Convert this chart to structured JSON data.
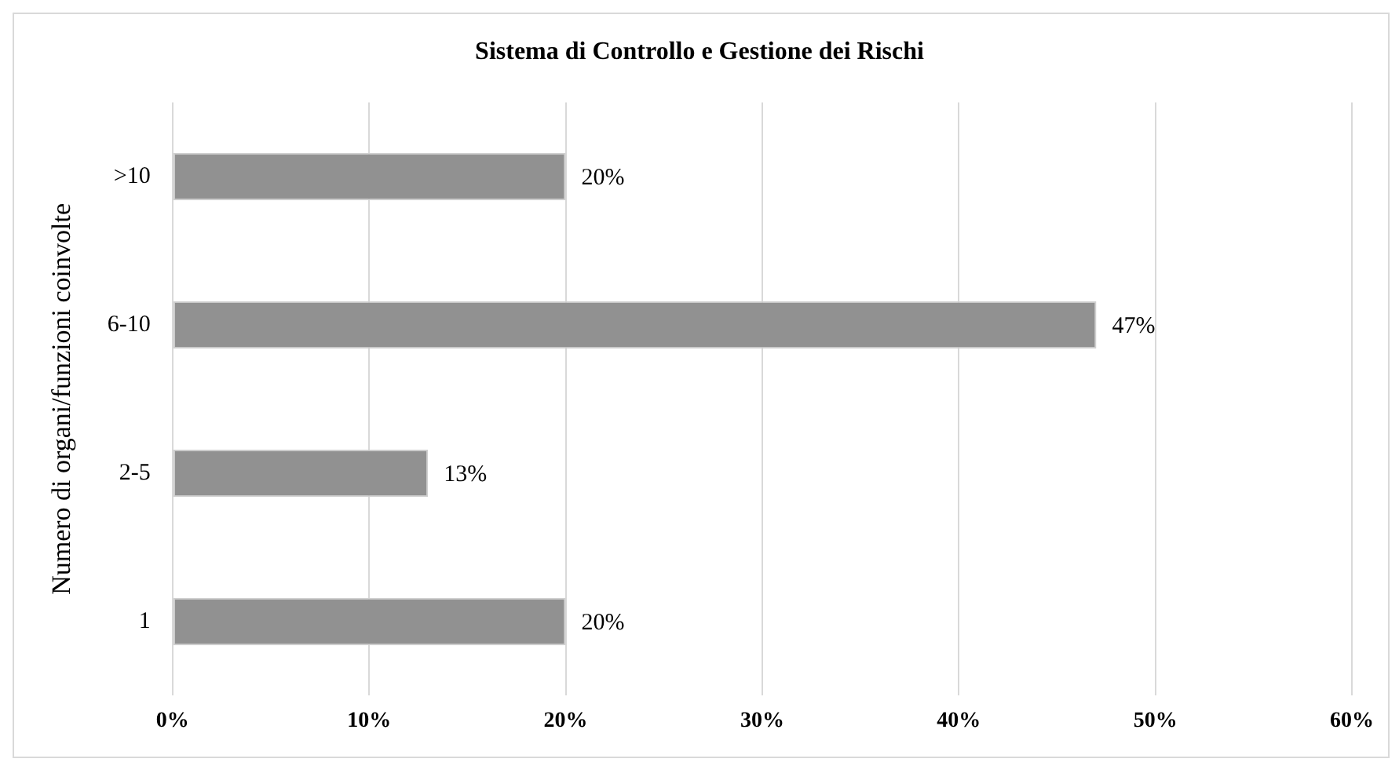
{
  "chart_data": {
    "type": "bar",
    "orientation": "horizontal",
    "title": "Sistema di Controllo e Gestione dei Rischi",
    "ylabel": "Numero di organi/funzioni coinvolte",
    "categories": [
      ">10",
      "6-10",
      "2-5",
      "1"
    ],
    "values": [
      20,
      47,
      13,
      20
    ],
    "value_labels": [
      "20%",
      "47%",
      "13%",
      "20%"
    ],
    "color": "#919191",
    "xlim": [
      0,
      60
    ],
    "xticks": [
      {
        "value": 0,
        "label": "0%"
      },
      {
        "value": 10,
        "label": "10%"
      },
      {
        "value": 20,
        "label": "20%"
      },
      {
        "value": 30,
        "label": "30%"
      },
      {
        "value": 40,
        "label": "40%"
      },
      {
        "value": 50,
        "label": "50%"
      },
      {
        "value": 60,
        "label": "60%"
      }
    ],
    "grid": "x"
  }
}
